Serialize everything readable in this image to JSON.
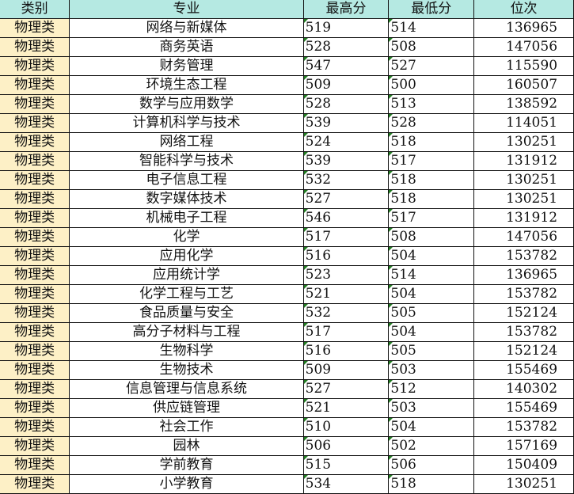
{
  "headers": [
    "类别",
    "专业",
    "最高分",
    "最低分",
    "位次"
  ],
  "colors": {
    "header_bg": "#b5e9e2",
    "category_bg": "#fdf0c6",
    "note_marker": "#1f7a1f"
  },
  "rows": [
    {
      "category": "物理类",
      "major": "网络与新媒体",
      "max": "519",
      "min": "514",
      "rank": "136965"
    },
    {
      "category": "物理类",
      "major": "商务英语",
      "max": "528",
      "min": "508",
      "rank": "147056"
    },
    {
      "category": "物理类",
      "major": "财务管理",
      "max": "547",
      "min": "527",
      "rank": "115590"
    },
    {
      "category": "物理类",
      "major": "环境生态工程",
      "max": "509",
      "min": "500",
      "rank": "160507"
    },
    {
      "category": "物理类",
      "major": "数学与应用数学",
      "max": "528",
      "min": "513",
      "rank": "138592"
    },
    {
      "category": "物理类",
      "major": "计算机科学与技术",
      "max": "539",
      "min": "528",
      "rank": "114051"
    },
    {
      "category": "物理类",
      "major": "网络工程",
      "max": "524",
      "min": "518",
      "rank": "130251"
    },
    {
      "category": "物理类",
      "major": "智能科学与技术",
      "max": "539",
      "min": "517",
      "rank": "131912"
    },
    {
      "category": "物理类",
      "major": "电子信息工程",
      "max": "532",
      "min": "518",
      "rank": "130251"
    },
    {
      "category": "物理类",
      "major": "数字媒体技术",
      "max": "527",
      "min": "518",
      "rank": "130251"
    },
    {
      "category": "物理类",
      "major": "机械电子工程",
      "max": "546",
      "min": "517",
      "rank": "131912"
    },
    {
      "category": "物理类",
      "major": "化学",
      "max": "517",
      "min": "508",
      "rank": "147056"
    },
    {
      "category": "物理类",
      "major": "应用化学",
      "max": "516",
      "min": "504",
      "rank": "153782"
    },
    {
      "category": "物理类",
      "major": "应用统计学",
      "max": "523",
      "min": "514",
      "rank": "136965"
    },
    {
      "category": "物理类",
      "major": "化学工程与工艺",
      "max": "521",
      "min": "504",
      "rank": "153782"
    },
    {
      "category": "物理类",
      "major": "食品质量与安全",
      "max": "532",
      "min": "505",
      "rank": "152124"
    },
    {
      "category": "物理类",
      "major": "高分子材料与工程",
      "max": "517",
      "min": "504",
      "rank": "153782"
    },
    {
      "category": "物理类",
      "major": "生物科学",
      "max": "516",
      "min": "505",
      "rank": "152124"
    },
    {
      "category": "物理类",
      "major": "生物技术",
      "max": "509",
      "min": "503",
      "rank": "155469"
    },
    {
      "category": "物理类",
      "major": "信息管理与信息系统",
      "max": "527",
      "min": "512",
      "rank": "140302"
    },
    {
      "category": "物理类",
      "major": "供应链管理",
      "max": "521",
      "min": "503",
      "rank": "155469"
    },
    {
      "category": "物理类",
      "major": "社会工作",
      "max": "510",
      "min": "504",
      "rank": "153782"
    },
    {
      "category": "物理类",
      "major": "园林",
      "max": "506",
      "min": "502",
      "rank": "157169"
    },
    {
      "category": "物理类",
      "major": "学前教育",
      "max": "515",
      "min": "506",
      "rank": "150409"
    },
    {
      "category": "物理类",
      "major": "小学教育",
      "max": "534",
      "min": "518",
      "rank": "130251"
    }
  ]
}
